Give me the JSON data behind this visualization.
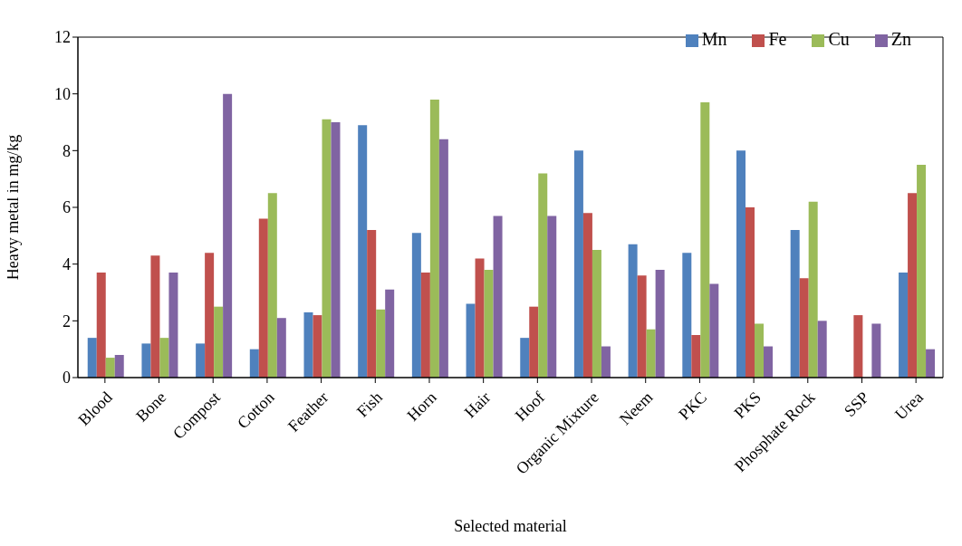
{
  "chart_data": {
    "type": "bar",
    "xlabel": "Selected material",
    "ylabel": "Heavy metal in mg/kg",
    "categories": [
      "Blood",
      "Bone",
      "Compost",
      "Cotton",
      "Feather",
      "Fish",
      "Horn",
      "Hair",
      "Hoof",
      "Organic Mixture",
      "Neem",
      "PKC",
      "PKS",
      "Phosphate Rock",
      "SSP",
      "Urea"
    ],
    "series": [
      {
        "name": "Mn",
        "color": "#4f81bd",
        "values": [
          1.4,
          1.2,
          1.2,
          1.0,
          2.3,
          8.9,
          5.1,
          2.6,
          1.4,
          8.0,
          4.7,
          4.4,
          8.0,
          5.2,
          null,
          3.7
        ]
      },
      {
        "name": "Fe",
        "color": "#c0504d",
        "values": [
          3.7,
          4.3,
          4.4,
          5.6,
          2.2,
          5.2,
          3.7,
          4.2,
          2.5,
          5.8,
          3.6,
          1.5,
          6.0,
          3.5,
          2.2,
          6.5
        ]
      },
      {
        "name": "Cu",
        "color": "#9bbb59",
        "values": [
          0.7,
          1.4,
          2.5,
          6.5,
          9.1,
          2.4,
          9.8,
          3.8,
          7.2,
          4.5,
          1.7,
          9.7,
          1.9,
          6.2,
          null,
          7.5
        ]
      },
      {
        "name": "Zn",
        "color": "#8064a2",
        "values": [
          0.8,
          3.7,
          10.0,
          2.1,
          9.0,
          3.1,
          8.4,
          5.7,
          5.7,
          1.1,
          3.8,
          3.3,
          1.1,
          2.0,
          1.9,
          1.0
        ]
      }
    ],
    "ylim": [
      0,
      12
    ],
    "yticks": [
      0,
      2,
      4,
      6,
      8,
      10,
      12
    ],
    "grid": false,
    "legend": "top right"
  }
}
